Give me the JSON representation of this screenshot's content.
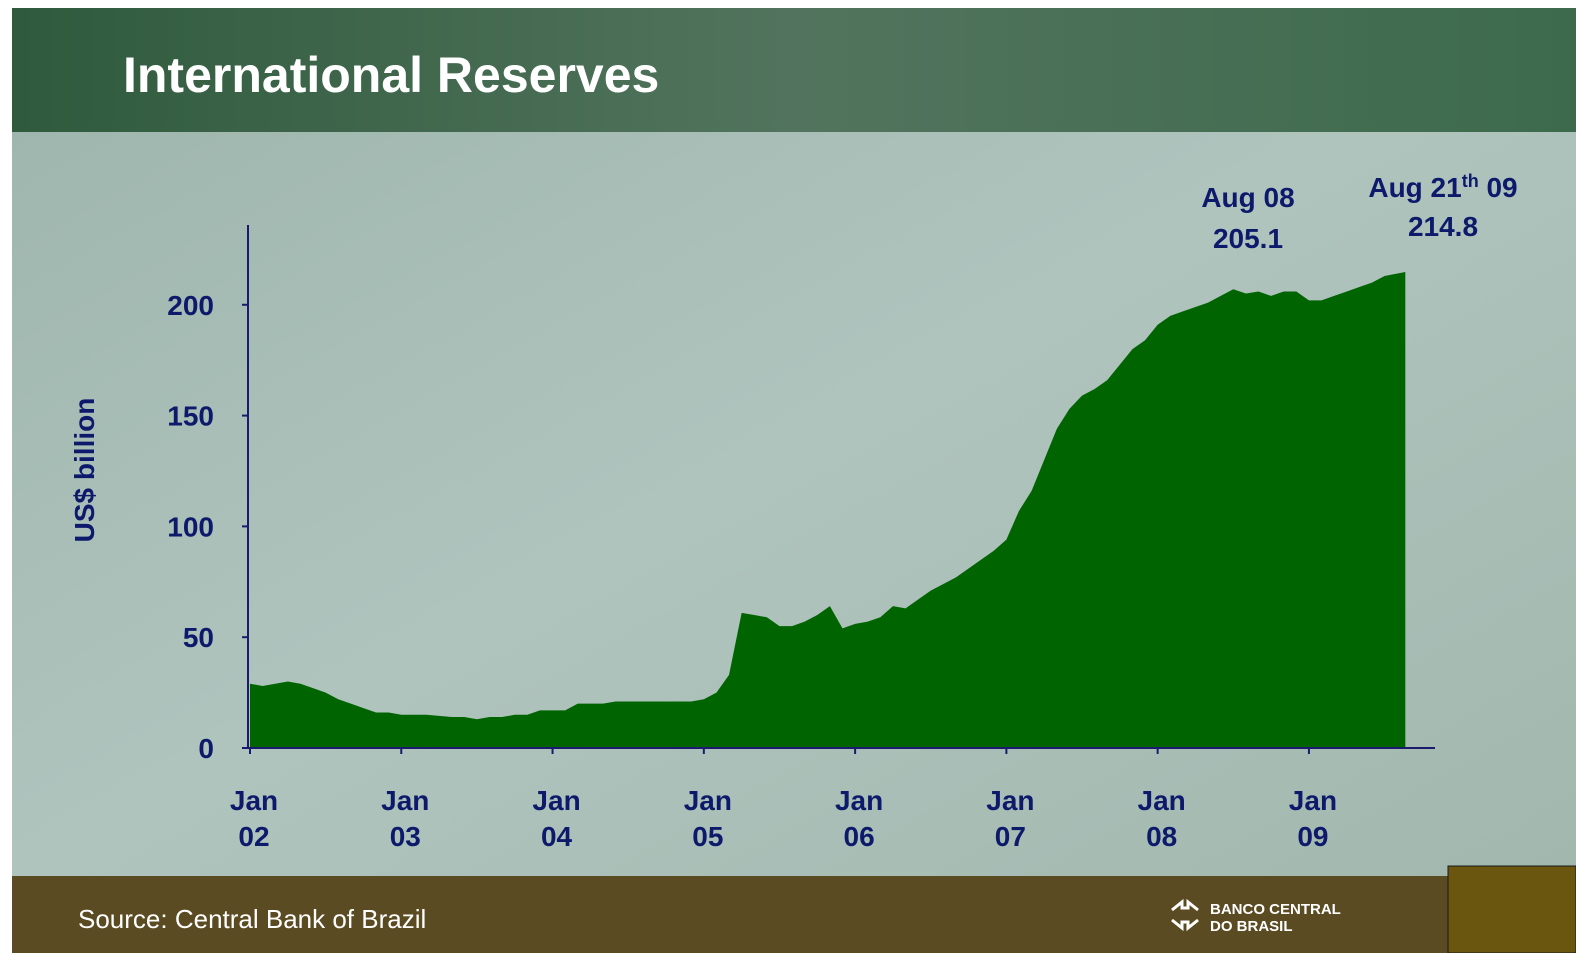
{
  "chart_data": {
    "type": "area",
    "title": "International Reserves",
    "y_label": "US$ billion",
    "color": "#006400",
    "x": [
      "2002-01",
      "2002-02",
      "2002-03",
      "2002-04",
      "2002-05",
      "2002-06",
      "2002-07",
      "2002-08",
      "2002-09",
      "2002-10",
      "2002-11",
      "2002-12",
      "2003-01",
      "2003-02",
      "2003-03",
      "2003-04",
      "2003-05",
      "2003-06",
      "2003-07",
      "2003-08",
      "2003-09",
      "2003-10",
      "2003-11",
      "2003-12",
      "2004-01",
      "2004-02",
      "2004-03",
      "2004-04",
      "2004-05",
      "2004-06",
      "2004-07",
      "2004-08",
      "2004-09",
      "2004-10",
      "2004-11",
      "2004-12",
      "2005-01",
      "2005-02",
      "2005-03",
      "2005-04",
      "2005-05",
      "2005-06",
      "2005-07",
      "2005-08",
      "2005-09",
      "2005-10",
      "2005-11",
      "2005-12",
      "2006-01",
      "2006-02",
      "2006-03",
      "2006-04",
      "2006-05",
      "2006-06",
      "2006-07",
      "2006-08",
      "2006-09",
      "2006-10",
      "2006-11",
      "2006-12",
      "2007-01",
      "2007-02",
      "2007-03",
      "2007-04",
      "2007-05",
      "2007-06",
      "2007-07",
      "2007-08",
      "2007-09",
      "2007-10",
      "2007-11",
      "2007-12",
      "2008-01",
      "2008-02",
      "2008-03",
      "2008-04",
      "2008-05",
      "2008-06",
      "2008-07",
      "2008-08",
      "2008-09",
      "2008-10",
      "2008-11",
      "2008-12",
      "2009-01",
      "2009-02",
      "2009-03",
      "2009-04",
      "2009-05",
      "2009-06",
      "2009-07",
      "2009-08-21"
    ],
    "values": [
      29,
      28,
      29,
      30,
      29,
      27,
      25,
      22,
      20,
      18,
      16,
      16,
      15,
      15,
      15,
      14.5,
      14,
      14,
      13,
      14,
      14,
      15,
      15,
      17,
      17,
      17,
      20,
      20,
      20,
      21,
      21,
      21,
      21,
      21,
      21,
      21,
      22,
      25,
      33,
      61,
      60,
      59,
      55,
      55,
      57,
      60,
      64,
      54,
      56,
      57,
      59,
      64,
      63,
      67,
      71,
      74,
      77,
      81,
      85,
      89,
      94,
      107,
      116,
      130,
      144,
      153,
      159,
      162,
      166,
      173,
      180,
      184,
      191,
      195,
      197,
      199,
      201,
      204,
      207,
      205.1,
      206,
      204,
      206,
      206,
      202,
      202,
      204,
      206,
      208,
      210,
      213,
      214.8
    ],
    "xlim": [
      "2002-01",
      "2009-11"
    ],
    "xticks": [
      {
        "value": "2002-01",
        "label": [
          "Jan",
          "02"
        ]
      },
      {
        "value": "2003-01",
        "label": [
          "Jan",
          "03"
        ]
      },
      {
        "value": "2004-01",
        "label": [
          "Jan",
          "04"
        ]
      },
      {
        "value": "2005-01",
        "label": [
          "Jan",
          "05"
        ]
      },
      {
        "value": "2006-01",
        "label": [
          "Jan",
          "06"
        ]
      },
      {
        "value": "2007-01",
        "label": [
          "Jan",
          "07"
        ]
      },
      {
        "value": "2008-01",
        "label": [
          "Jan",
          "08"
        ]
      },
      {
        "value": "2009-01",
        "label": [
          "Jan",
          "09"
        ]
      }
    ],
    "ylim": [
      0,
      236
    ],
    "yticks": [
      0,
      50,
      100,
      150,
      200
    ],
    "annotations": [
      {
        "date": [
          "Aug 08"
        ],
        "value": 205.1
      },
      {
        "date": [
          "Aug 21",
          "th",
          " 09"
        ],
        "value": 214.8
      }
    ]
  },
  "source": "Source: Central Bank of Brazil",
  "logo": [
    "BANCO CENTRAL",
    "DO BRASIL"
  ]
}
